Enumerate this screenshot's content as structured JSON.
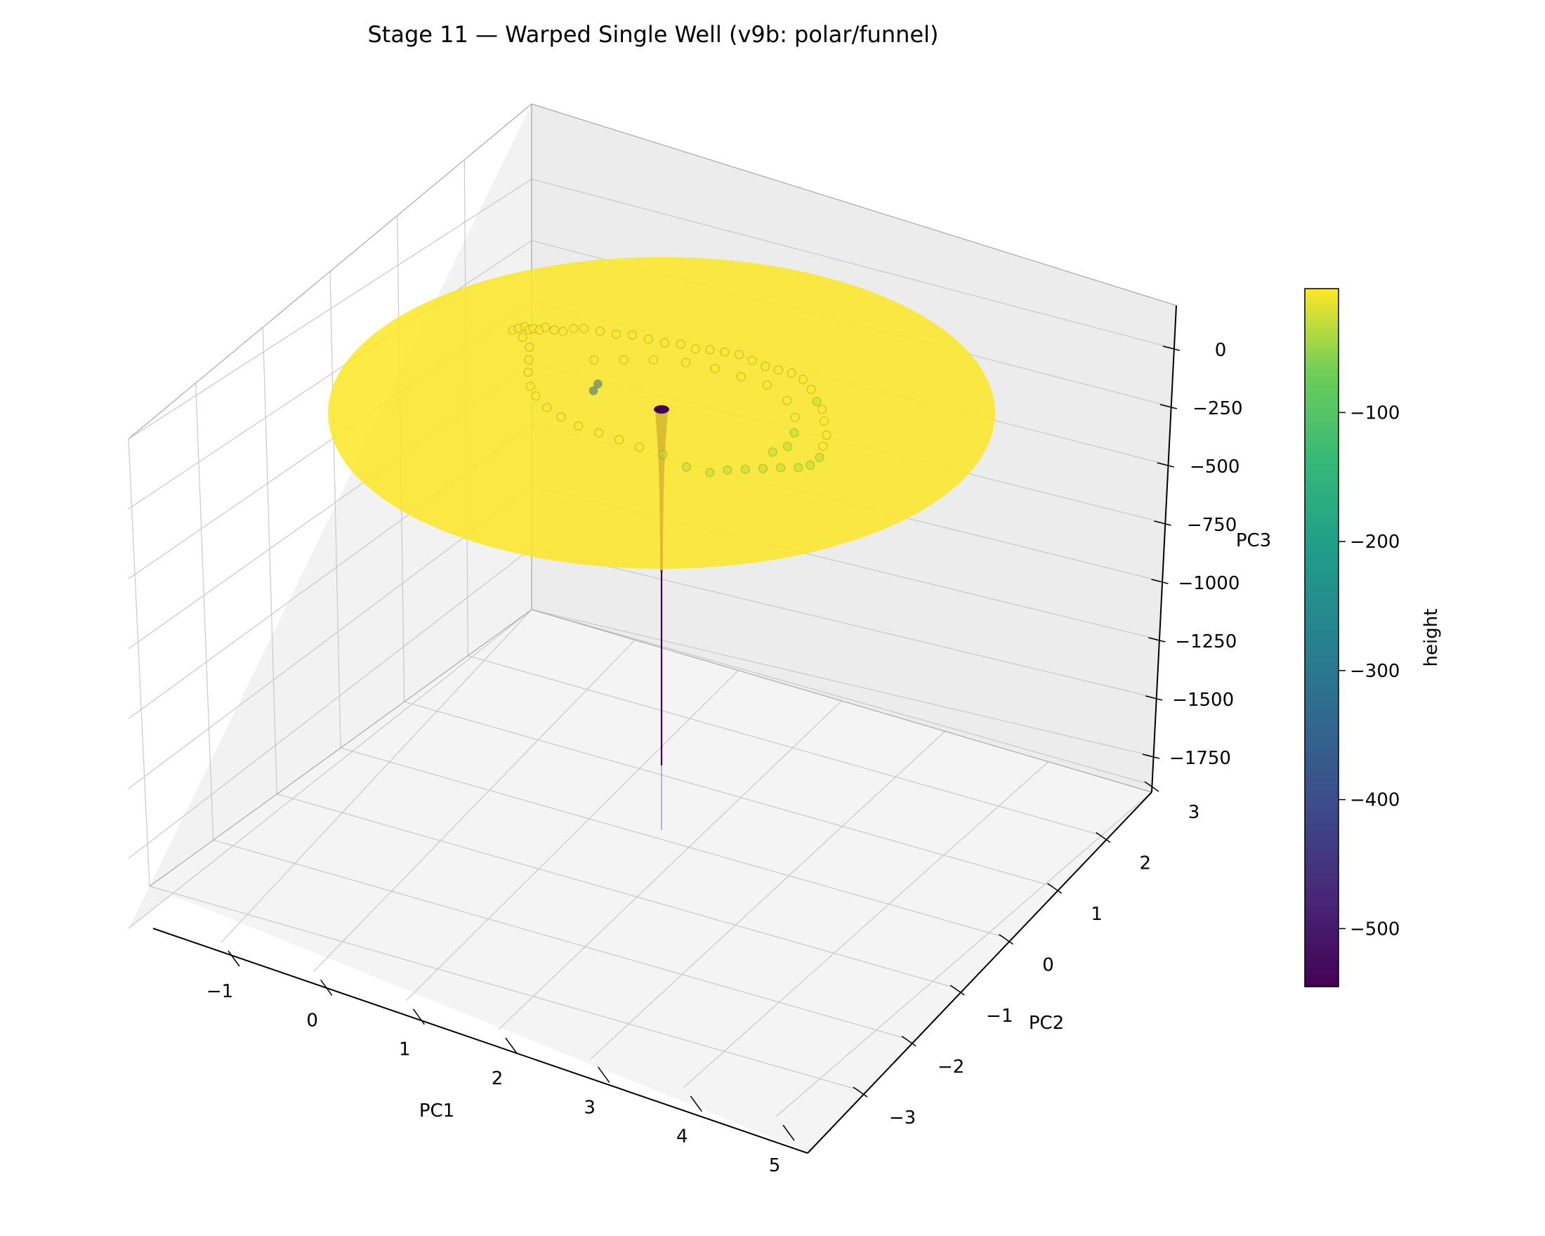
{
  "chart_data": {
    "type": "surface3d",
    "title": "Stage 11 — Warped Single Well (v9b: polar/funnel)",
    "xlabel": "PC1",
    "ylabel": "PC2",
    "zlabel": "PC3",
    "x_ticks": [
      "−1",
      "0",
      "1",
      "2",
      "3",
      "4",
      "5"
    ],
    "y_ticks": [
      "−3",
      "−2",
      "−1",
      "0",
      "1",
      "2",
      "3"
    ],
    "z_ticks": [
      "0",
      "−250",
      "−500",
      "−750",
      "−1000",
      "−1250",
      "−1500",
      "−1750"
    ],
    "xlim": [
      -1.9,
      5.2
    ],
    "ylim": [
      -3.6,
      3.5
    ],
    "zlim": [
      -1900,
      100
    ],
    "grid": true,
    "surface": {
      "shape": "radial funnel (single well)",
      "center": {
        "x": 1.9,
        "y": 0.2
      },
      "radius": 3.6,
      "rim_height": 0,
      "well_bottom": -1800,
      "cmap": "viridis"
    },
    "trajectory_points": [
      [
        -0.9,
        0.6,
        -15
      ],
      [
        -0.85,
        0.7,
        -12
      ],
      [
        -0.8,
        0.8,
        -10
      ],
      [
        -0.75,
        0.85,
        -18
      ],
      [
        -0.7,
        0.9,
        -14
      ],
      [
        -0.65,
        1.0,
        -20
      ],
      [
        -0.6,
        1.1,
        -16
      ],
      [
        -0.5,
        1.2,
        -22
      ],
      [
        -0.4,
        1.3,
        -25
      ],
      [
        -0.3,
        1.45,
        -18
      ],
      [
        -0.2,
        1.6,
        -20
      ],
      [
        0.0,
        1.75,
        -22
      ],
      [
        0.2,
        1.9,
        -24
      ],
      [
        0.4,
        2.05,
        -20
      ],
      [
        0.6,
        2.2,
        -26
      ],
      [
        0.8,
        2.35,
        -30
      ],
      [
        1.0,
        2.5,
        -28
      ],
      [
        1.2,
        2.6,
        -32
      ],
      [
        1.4,
        2.7,
        -25
      ],
      [
        1.6,
        2.8,
        -22
      ],
      [
        1.8,
        2.9,
        -20
      ],
      [
        2.0,
        2.95,
        -24
      ],
      [
        2.2,
        3.0,
        -28
      ],
      [
        2.4,
        3.05,
        -26
      ],
      [
        2.6,
        3.1,
        -22
      ],
      [
        2.8,
        3.1,
        -24
      ],
      [
        3.0,
        3.0,
        -30
      ],
      [
        3.2,
        2.8,
        -35
      ],
      [
        3.4,
        2.6,
        -28
      ],
      [
        3.6,
        2.3,
        -26
      ],
      [
        3.8,
        2.0,
        -30
      ],
      [
        3.9,
        1.7,
        -34
      ],
      [
        4.0,
        1.4,
        -38
      ],
      [
        4.0,
        1.1,
        -40
      ],
      [
        3.9,
        0.9,
        -42
      ],
      [
        3.7,
        0.7,
        -45
      ],
      [
        3.5,
        0.5,
        -50
      ],
      [
        3.3,
        0.3,
        -55
      ],
      [
        3.1,
        0.1,
        -60
      ],
      [
        2.9,
        -0.1,
        -70
      ],
      [
        2.6,
        -0.3,
        -65
      ],
      [
        2.3,
        -0.5,
        -40
      ],
      [
        2.0,
        -0.7,
        -30
      ],
      [
        1.7,
        -0.8,
        -26
      ],
      [
        1.4,
        -0.9,
        -24
      ],
      [
        1.1,
        -1.0,
        -22
      ],
      [
        0.8,
        -1.0,
        -20
      ],
      [
        0.5,
        -0.9,
        -24
      ],
      [
        0.2,
        -0.7,
        -28
      ],
      [
        0.0,
        -0.5,
        -30
      ],
      [
        -0.2,
        -0.2,
        -26
      ],
      [
        -0.35,
        0.1,
        -22
      ],
      [
        -0.5,
        0.4,
        -18
      ],
      [
        -0.7,
        0.55,
        -16
      ],
      [
        0.3,
        1.0,
        -30
      ],
      [
        0.6,
        1.4,
        -32
      ],
      [
        0.9,
        1.8,
        -34
      ],
      [
        1.3,
        2.1,
        -30
      ],
      [
        1.7,
        2.3,
        -28
      ],
      [
        2.1,
        2.4,
        -26
      ],
      [
        2.5,
        2.5,
        -24
      ],
      [
        2.9,
        2.4,
        -30
      ],
      [
        3.2,
        2.1,
        -34
      ],
      [
        3.4,
        1.7,
        -36
      ],
      [
        3.5,
        1.3,
        -40
      ],
      [
        3.4,
        1.0,
        -44
      ],
      [
        -1.0,
        3.4,
        -380
      ],
      [
        -0.95,
        3.45,
        -360
      ]
    ],
    "colorbar": {
      "label": "height",
      "ticks": [
        "−100",
        "−200",
        "−300",
        "−400",
        "−500"
      ],
      "tick_values": [
        -100,
        -200,
        -300,
        -400,
        -500
      ],
      "min": -545,
      "max": -4
    }
  }
}
